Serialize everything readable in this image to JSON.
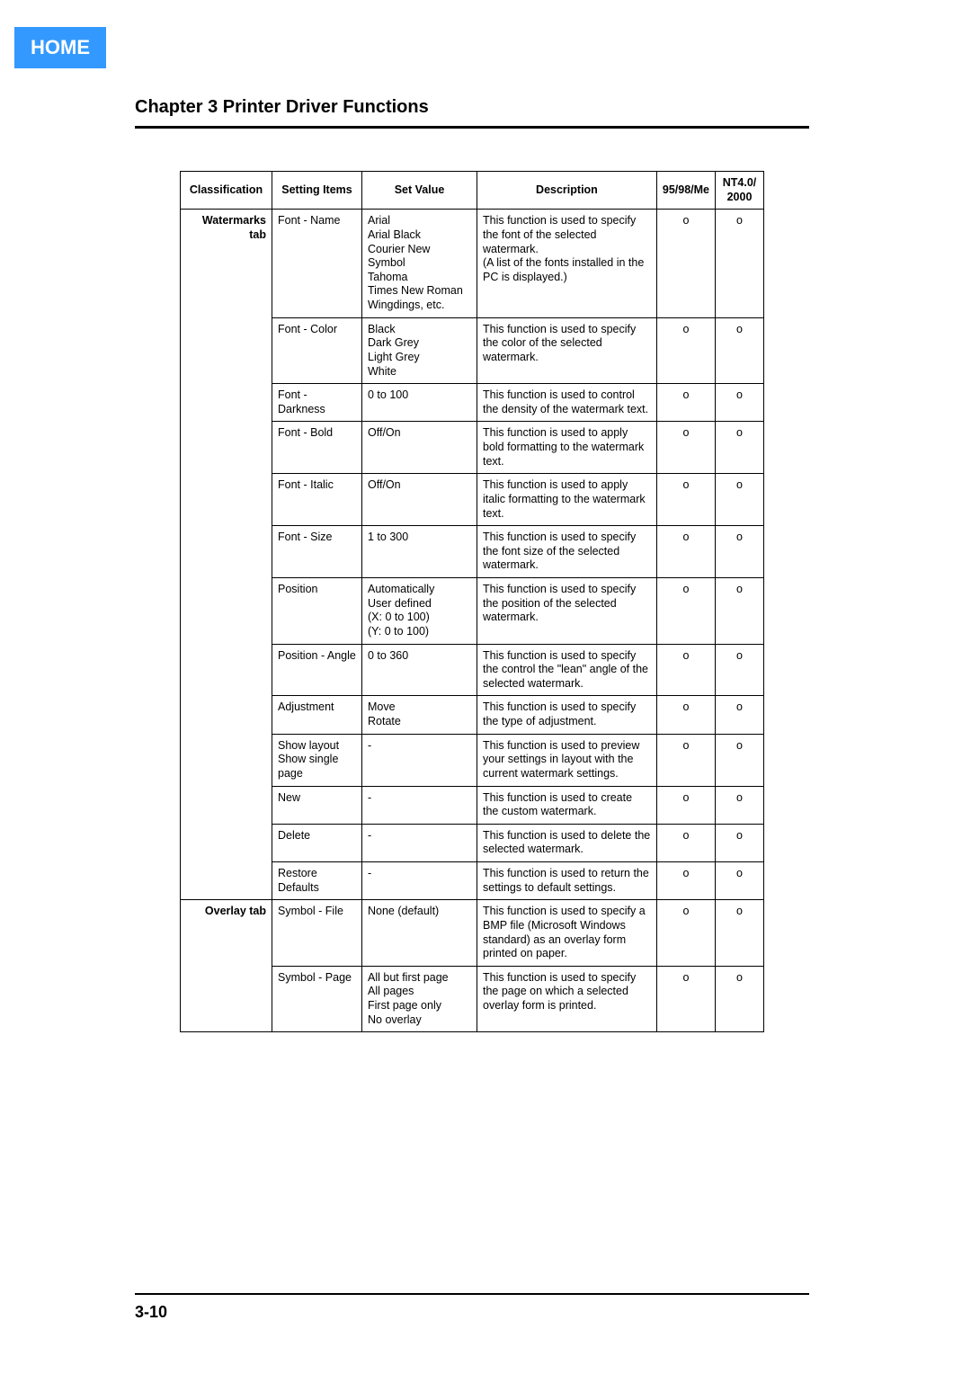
{
  "home_label": "HOME",
  "chapter_title": "Chapter 3 Printer Driver Functions",
  "page_number": "3-10",
  "colors": {
    "home_bg": "#3399ff",
    "home_fg": "#ffffff",
    "rule": "#000000",
    "text": "#000000",
    "table_border": "#000000"
  },
  "table": {
    "columns": [
      "Classification",
      "Setting Items",
      "Set Value",
      "Description",
      "95/98/Me",
      "NT4.0/\n2000"
    ],
    "rows": [
      {
        "classification": "Watermarks tab",
        "rowspan": 13,
        "item": "Font - Name",
        "value": "Arial\nArial Black\nCourier New\nSymbol\nTahoma\nTimes New Roman\nWingdings, etc.",
        "desc": "This function is used to specify the font of the selected watermark.\n(A list of the fonts installed in the PC is displayed.)",
        "os1": "o",
        "os2": "o"
      },
      {
        "item": "Font - Color",
        "value": "Black\nDark Grey\nLight Grey\nWhite",
        "desc": "This function is used to specify the color of the selected watermark.",
        "os1": "o",
        "os2": "o"
      },
      {
        "item": "Font - Darkness",
        "value": "0 to 100",
        "desc": "This function is used to control the density of the watermark text.",
        "os1": "o",
        "os2": "o"
      },
      {
        "item": "Font - Bold",
        "value": "Off/On",
        "desc": "This function is used to apply bold formatting to the watermark text.",
        "os1": "o",
        "os2": "o"
      },
      {
        "item": "Font - Italic",
        "value": "Off/On",
        "desc": "This function is used to apply italic formatting to the watermark text.",
        "os1": "o",
        "os2": "o"
      },
      {
        "item": "Font - Size",
        "value": "1 to 300",
        "desc": "This function is used to specify the font size of the selected watermark.",
        "os1": "o",
        "os2": "o"
      },
      {
        "item": "Position",
        "value": "Automatically\nUser defined\n(X: 0 to 100)\n(Y: 0 to 100)",
        "desc": "This function is used to specify the position of the selected watermark.",
        "os1": "o",
        "os2": "o"
      },
      {
        "item": "Position - Angle",
        "value": "0 to 360",
        "desc": "This function is used to specify the control the \"lean\" angle of the selected watermark.",
        "os1": "o",
        "os2": "o"
      },
      {
        "item": "Adjustment",
        "value": "Move\nRotate",
        "desc": "This function is used to specify the type of adjustment.",
        "os1": "o",
        "os2": "o"
      },
      {
        "item": "Show layout\nShow single page",
        "value": "-",
        "desc": "This function is used to preview your settings in layout with the current watermark settings.",
        "os1": "o",
        "os2": "o"
      },
      {
        "item": "New",
        "value": "-",
        "desc": "This function is used to create the custom watermark.",
        "os1": "o",
        "os2": "o"
      },
      {
        "item": "Delete",
        "value": "-",
        "desc": "This function is used to delete the selected watermark.",
        "os1": "o",
        "os2": "o"
      },
      {
        "item": "Restore Defaults",
        "value": "-",
        "desc": "This function is used to return the settings to default settings.",
        "os1": "o",
        "os2": "o"
      },
      {
        "classification": "Overlay tab",
        "rowspan": 2,
        "item": "Symbol - File",
        "value": "None (default)",
        "desc": "This function is used to specify a BMP file (Microsoft Windows standard) as an overlay form printed on paper.",
        "os1": "o",
        "os2": "o"
      },
      {
        "item": "Symbol - Page",
        "value": "All but first page\nAll pages\nFirst page only\nNo overlay",
        "desc": "This function is used to specify the page on which a selected overlay form is printed.",
        "os1": "o",
        "os2": "o"
      }
    ]
  }
}
